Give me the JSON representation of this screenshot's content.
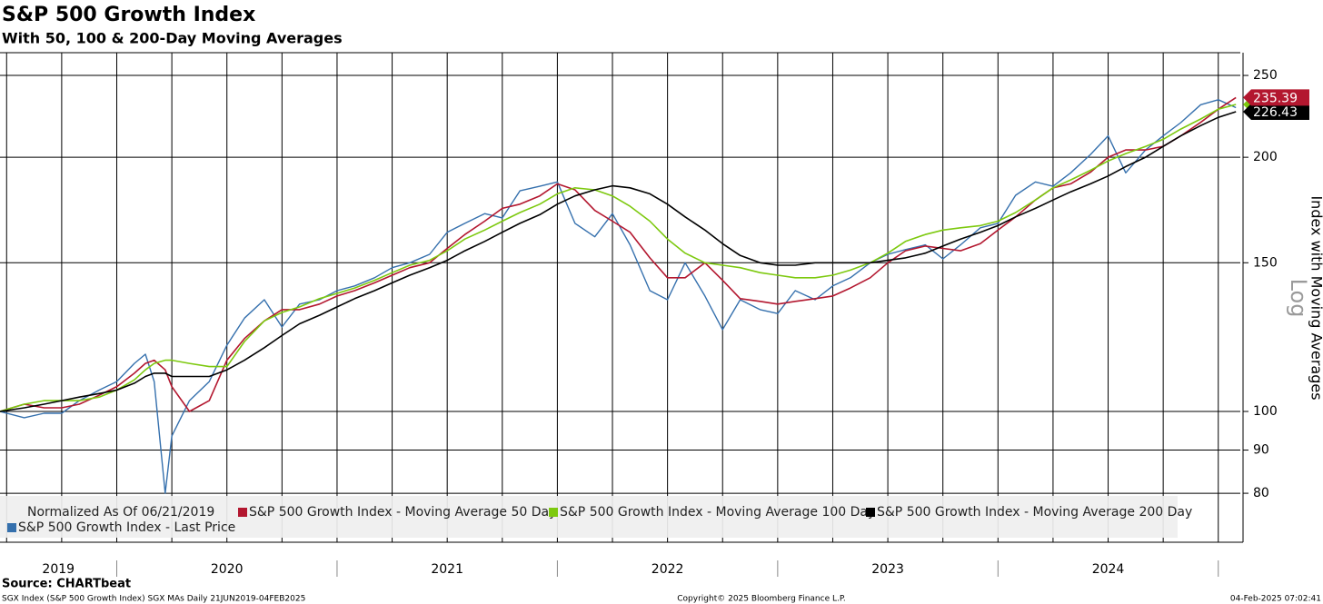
{
  "chart_data": {
    "type": "line",
    "title": "S&P 500 Growth Index",
    "subtitle": "With 50, 100 & 200-Day Moving Averages",
    "y_label": "Index with Moving Averages",
    "scale_label": "Log",
    "legend_note": "Normalized As Of 06/21/2019",
    "source": "Source: CHARTbeat",
    "footer_left": "SGX Index (S&P 500 Growth Index) SGX MAs  Daily 21JUN2019-04FEB2025",
    "footer_center": "Copyright© 2025 Bloomberg Finance L.P.",
    "footer_right": "04-Feb-2025 07:02:41",
    "yscale": "log",
    "grid": true,
    "ylim": [
      70,
      266
    ],
    "yticks": [
      80,
      90,
      100,
      150,
      200,
      250
    ],
    "xlim": [
      2019.47,
      2025.1
    ],
    "xticks": [
      2019.5,
      2019.75,
      2020,
      2020.25,
      2020.5,
      2020.75,
      2021,
      2021.25,
      2021.5,
      2021.75,
      2022,
      2022.25,
      2022.5,
      2022.75,
      2023,
      2023.25,
      2023.5,
      2023.75,
      2024,
      2024.25,
      2024.5,
      2024.75,
      2025
    ],
    "year_labels": [
      {
        "value": 2019,
        "label": "2019"
      },
      {
        "value": 2020,
        "label": "2020"
      },
      {
        "value": 2021,
        "label": "2021"
      },
      {
        "value": 2022,
        "label": "2022"
      },
      {
        "value": 2023,
        "label": "2023"
      },
      {
        "value": 2024,
        "label": "2024"
      }
    ],
    "x": [
      2019.47,
      2019.58,
      2019.67,
      2019.75,
      2019.83,
      2019.92,
      2020.0,
      2020.08,
      2020.13,
      2020.17,
      2020.22,
      2020.25,
      2020.33,
      2020.42,
      2020.5,
      2020.58,
      2020.67,
      2020.75,
      2020.83,
      2020.92,
      2021.0,
      2021.08,
      2021.17,
      2021.25,
      2021.33,
      2021.42,
      2021.5,
      2021.58,
      2021.67,
      2021.75,
      2021.83,
      2021.92,
      2022.0,
      2022.08,
      2022.17,
      2022.25,
      2022.33,
      2022.42,
      2022.5,
      2022.58,
      2022.67,
      2022.75,
      2022.83,
      2022.92,
      2023.0,
      2023.08,
      2023.17,
      2023.25,
      2023.33,
      2023.42,
      2023.5,
      2023.58,
      2023.67,
      2023.75,
      2023.83,
      2023.92,
      2024.0,
      2024.08,
      2024.17,
      2024.25,
      2024.33,
      2024.42,
      2024.5,
      2024.58,
      2024.67,
      2024.75,
      2024.83,
      2024.92,
      2025.0,
      2025.08
    ],
    "series": [
      {
        "name": "S&P 500 Growth Index - Last Price",
        "color": "#3570ad",
        "end_label": false,
        "values": [
          100,
          98.3,
          99.5,
          99.5,
          103,
          106,
          108.5,
          114,
          116.9,
          108.5,
          80,
          93.5,
          103,
          108.5,
          119.8,
          129,
          135.6,
          125.9,
          134,
          135.6,
          139,
          140.8,
          144,
          148,
          150,
          153.5,
          163,
          167,
          171.5,
          169.5,
          182.5,
          184.8,
          187,
          167,
          161,
          171.5,
          157.5,
          139,
          135.6,
          150,
          137,
          125,
          135.6,
          132,
          130.6,
          139,
          135.6,
          140.8,
          144,
          150,
          153.5,
          155.5,
          157.5,
          151.6,
          157.5,
          165,
          167,
          180.3,
          187,
          184.8,
          191.7,
          201.5,
          212,
          191.7,
          204,
          212,
          219.8,
          230.8,
          234,
          229
        ]
      },
      {
        "name": "S&P 500 Growth Index - Moving Average 50 Day",
        "color": "#b3172f",
        "end_label": true,
        "values": [
          100,
          102,
          101,
          101,
          102,
          104.5,
          107,
          111,
          114,
          115,
          112,
          107,
          100,
          103,
          115,
          122,
          128,
          132,
          132,
          134,
          137,
          139,
          142,
          145,
          148,
          150,
          156,
          162,
          168,
          174,
          176,
          180,
          186,
          183,
          173,
          168,
          163,
          152,
          144,
          144,
          150,
          143,
          136,
          135,
          134,
          135,
          136,
          137,
          140,
          144,
          150,
          155,
          157,
          156,
          155,
          158,
          164,
          170,
          178,
          184,
          186,
          192,
          200,
          204,
          204,
          206,
          212,
          220,
          228,
          235.39
        ]
      },
      {
        "name": "S&P 500 Growth Index - Moving Average 100 Day",
        "color": "#7dc90f",
        "end_label": true,
        "values": [
          100,
          102,
          103,
          103,
          103,
          104,
          106,
          109,
          112,
          114,
          115,
          115,
          114,
          113,
          113,
          121,
          128,
          131,
          133,
          136,
          138,
          140,
          143,
          146,
          149,
          151,
          155,
          160,
          164,
          168,
          172,
          176,
          181,
          184,
          183,
          180,
          175,
          168,
          160,
          154,
          150,
          149,
          148,
          146,
          145,
          144,
          144,
          145,
          147,
          150,
          154,
          159,
          162,
          164,
          165,
          166,
          168,
          172,
          178,
          184,
          188,
          193,
          198,
          202,
          206,
          210,
          216,
          222,
          228,
          231
        ]
      },
      {
        "name": "S&P 500 Growth Index - Moving Average 200 Day",
        "color": "#000000",
        "end_label": true,
        "values": [
          100,
          101,
          102,
          103,
          104,
          105,
          106,
          108,
          110,
          111,
          111,
          110,
          110,
          110,
          112,
          115,
          119,
          123,
          127,
          130,
          133,
          136,
          139,
          142,
          145,
          148,
          151,
          155,
          159,
          163,
          167,
          171,
          176,
          180,
          183,
          185,
          184,
          181,
          176,
          170,
          164,
          158,
          153,
          150,
          149,
          149,
          150,
          150,
          150,
          150,
          151,
          152,
          154,
          157,
          160,
          163,
          166,
          170,
          174,
          178,
          182,
          186,
          190,
          195,
          200,
          206,
          212,
          218,
          223,
          226.43
        ]
      }
    ]
  }
}
